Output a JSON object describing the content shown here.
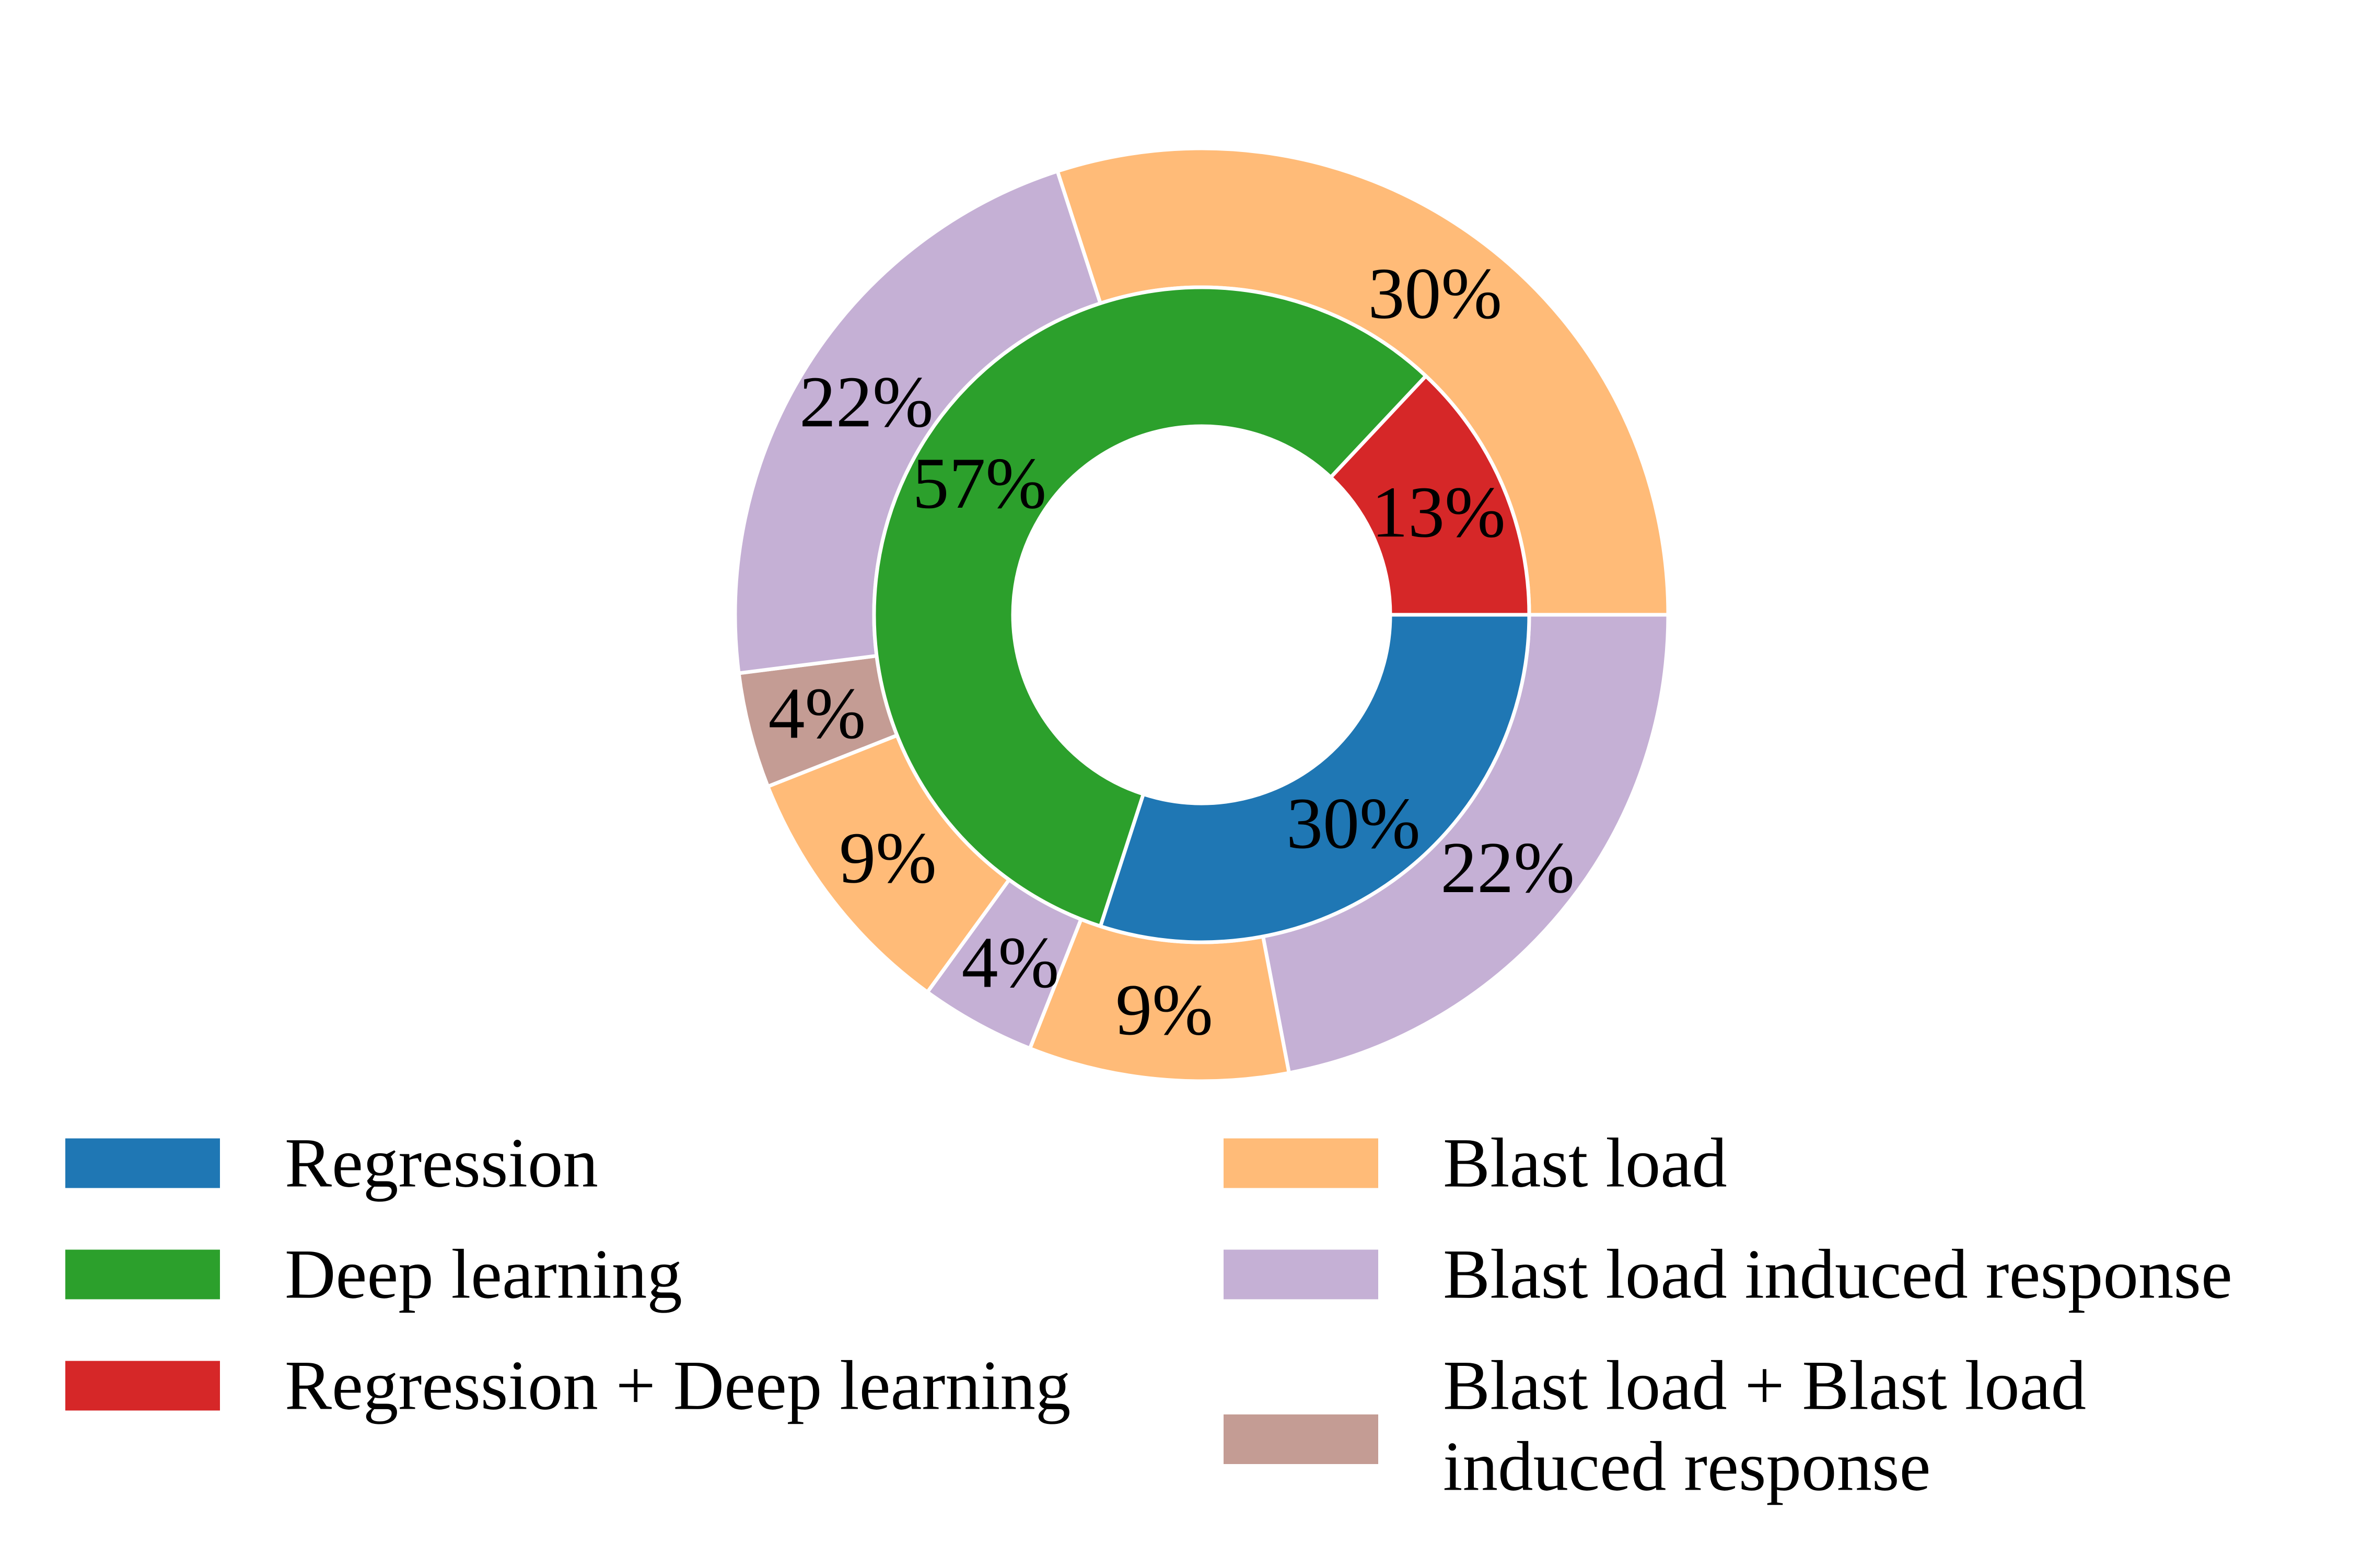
{
  "chart_data": {
    "type": "pie",
    "subtype": "nested-donut",
    "inner_ring": {
      "slices": [
        {
          "name": "Regression",
          "value": 30,
          "label": "30%",
          "color": "#1f77b4"
        },
        {
          "name": "Deep learning",
          "value": 57,
          "label": "57%",
          "color": "#2ca02c"
        },
        {
          "name": "Regression +  Deep learning",
          "value": 13,
          "label": "13%",
          "color": "#d62728"
        }
      ]
    },
    "outer_ring": {
      "slices": [
        {
          "parent": "Regression",
          "category": "Blast load induced response",
          "value": 22,
          "label": "22%",
          "color": "#c5b0d5"
        },
        {
          "parent": "Regression",
          "category": "Blast load",
          "value": 9,
          "label": "9%",
          "color": "#ffbb78"
        },
        {
          "parent": "Regression +  Deep learning",
          "category": "Blast load induced response",
          "value": 4,
          "label": "4%",
          "color": "#c5b0d5"
        },
        {
          "parent": "Regression +  Deep learning",
          "category": "Blast load",
          "value": 9,
          "label": "9%",
          "color": "#ffbb78"
        },
        {
          "parent": "Regression +  Deep learning",
          "category": "Blast load + Blast load induced response",
          "value": 4,
          "label": "4%",
          "color": "#c49c94"
        },
        {
          "parent": "Deep learning",
          "category": "Blast load induced response",
          "value": 22,
          "label": "22%",
          "color": "#c5b0d5"
        },
        {
          "parent": "Deep learning",
          "category": "Blast load",
          "value": 30,
          "label": "30%",
          "color": "#ffbb78"
        }
      ]
    },
    "legend": {
      "placement": "bottom",
      "entries": [
        {
          "label": "Regression",
          "color": "#1f77b4"
        },
        {
          "label": "Deep learning",
          "color": "#2ca02c"
        },
        {
          "label": "Regression +  Deep learning",
          "color": "#d62728"
        },
        {
          "label": "Blast load",
          "color": "#ffbb78"
        },
        {
          "label": "Blast load induced response",
          "color": "#c5b0d5"
        },
        {
          "label": "Blast load + Blast load induced response",
          "lines": [
            "Blast load + Blast load",
            "induced response"
          ],
          "color": "#c49c94"
        }
      ]
    }
  }
}
